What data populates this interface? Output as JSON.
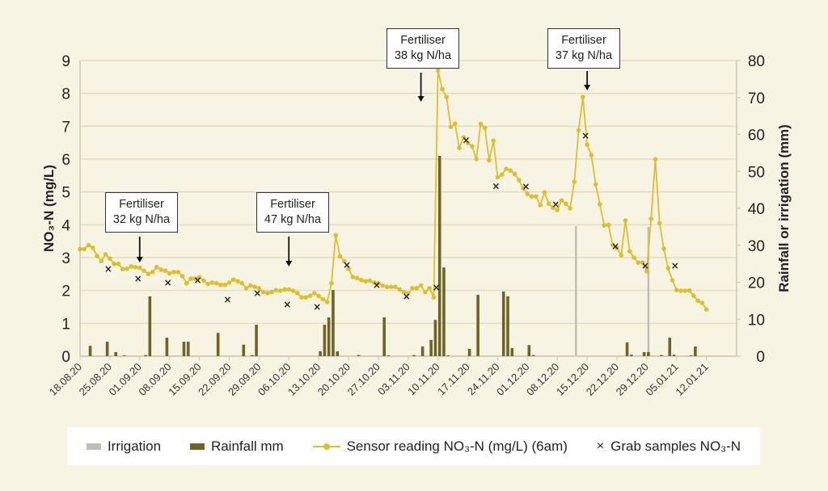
{
  "chart_data": {
    "type": "bar+line",
    "ylabel_left": "NO₃-N (mg/L)",
    "ylabel_right": "Rainfall or irrigation (mm)",
    "ylim_left": [
      0,
      9
    ],
    "ylim_right": [
      0,
      80
    ],
    "yticks_left": [
      0,
      1,
      2,
      3,
      4,
      5,
      6,
      7,
      8,
      9
    ],
    "yticks_right": [
      0,
      10,
      20,
      30,
      40,
      50,
      60,
      70,
      80
    ],
    "grid": true,
    "legend_placement": "bottom",
    "x_ticks": [
      "18.08.20",
      "25.08.20",
      "01.09.20",
      "08.09.20",
      "15.09.20",
      "22.09.20",
      "29.09.20",
      "06.10.20",
      "13.10.20",
      "20.10.20",
      "27.10.20",
      "03.11.20",
      "10.11.20",
      "17.11.20",
      "24.11.20",
      "01.12.20",
      "08.12.20",
      "15.12.20",
      "22.12.20",
      "29.12.20",
      "05.01.21",
      "12.01.21"
    ],
    "colors": {
      "irrigation": "#bfbdb3",
      "rainfall": "#6e6428",
      "sensor": "#dcbf2e",
      "grab": "#222222",
      "background": "#f8f4e3"
    },
    "legend": {
      "irrigation": "Irrigation",
      "rainfall": "Rainfall mm",
      "sensor": "Sensor reading NO₃-N (mg/L) (6am)",
      "grab": "Grab samples NO₃-N"
    },
    "sensor": {
      "dates": [
        "18.08.20",
        "19.08.20",
        "20.08.20",
        "21.08.20",
        "22.08.20",
        "23.08.20",
        "24.08.20",
        "25.08.20",
        "26.08.20",
        "27.08.20",
        "28.08.20",
        "29.08.20",
        "30.08.20",
        "31.08.20",
        "01.09.20",
        "02.09.20",
        "03.09.20",
        "04.09.20",
        "05.09.20",
        "06.09.20",
        "07.09.20",
        "08.09.20",
        "09.09.20",
        "10.09.20",
        "11.09.20",
        "12.09.20",
        "13.09.20",
        "14.09.20",
        "15.09.20",
        "16.09.20",
        "17.09.20",
        "18.09.20",
        "19.09.20",
        "20.09.20",
        "21.09.20",
        "22.09.20",
        "23.09.20",
        "24.09.20",
        "25.09.20",
        "26.09.20",
        "27.09.20",
        "28.09.20",
        "29.09.20",
        "30.09.20",
        "01.10.20",
        "02.10.20",
        "03.10.20",
        "04.10.20",
        "05.10.20",
        "06.10.20",
        "07.10.20",
        "08.10.20",
        "09.10.20",
        "10.10.20",
        "11.10.20",
        "12.10.20",
        "13.10.20",
        "14.10.20",
        "15.10.20",
        "16.10.20",
        "17.10.20",
        "18.10.20",
        "19.10.20",
        "20.10.20",
        "21.10.20",
        "22.10.20",
        "23.10.20",
        "24.10.20",
        "25.10.20",
        "26.10.20",
        "27.10.20",
        "28.10.20",
        "29.10.20",
        "30.10.20",
        "31.10.20",
        "01.11.20",
        "02.11.20",
        "03.11.20",
        "04.11.20",
        "05.11.20",
        "06.11.20",
        "07.11.20",
        "08.11.20",
        "09.11.20",
        "10.11.20",
        "11.11.20",
        "12.11.20",
        "13.11.20",
        "14.11.20",
        "15.11.20",
        "16.11.20",
        "17.11.20",
        "18.11.20",
        "19.11.20",
        "20.11.20",
        "21.11.20",
        "22.11.20",
        "23.11.20",
        "24.11.20",
        "25.11.20",
        "26.11.20",
        "27.11.20",
        "28.11.20",
        "29.11.20",
        "30.11.20",
        "01.12.20",
        "02.12.20",
        "03.12.20",
        "04.12.20",
        "05.12.20",
        "06.12.20",
        "07.12.20",
        "08.12.20",
        "09.12.20",
        "10.12.20",
        "11.12.20",
        "12.12.20",
        "13.12.20",
        "14.12.20",
        "15.12.20",
        "16.12.20",
        "17.12.20",
        "18.12.20",
        "19.12.20",
        "20.12.20",
        "21.12.20",
        "22.12.20",
        "23.12.20",
        "24.12.20",
        "25.12.20",
        "26.12.20",
        "27.12.20",
        "28.12.20",
        "29.12.20",
        "30.12.20",
        "31.12.20",
        "01.01.21",
        "02.01.21",
        "03.01.21",
        "04.01.21",
        "05.01.21",
        "06.01.21",
        "07.01.21",
        "08.01.21",
        "09.01.21",
        "10.01.21",
        "11.01.21",
        "12.01.21"
      ],
      "values": [
        3.26,
        3.26,
        3.38,
        3.3,
        3.05,
        2.89,
        3.1,
        2.97,
        2.81,
        2.81,
        2.65,
        2.66,
        2.73,
        2.71,
        2.69,
        2.6,
        2.5,
        2.56,
        2.71,
        2.63,
        2.6,
        2.52,
        2.56,
        2.56,
        2.44,
        2.22,
        2.36,
        2.36,
        2.4,
        2.3,
        2.2,
        2.24,
        2.22,
        2.17,
        2.17,
        2.24,
        2.33,
        2.28,
        2.22,
        2.07,
        2.15,
        2.11,
        2.07,
        1.95,
        1.92,
        1.95,
        2.01,
        1.99,
        2.03,
        2.03,
        1.99,
        1.92,
        1.79,
        1.79,
        1.84,
        1.92,
        1.83,
        1.73,
        1.65,
        2.22,
        3.68,
        3.04,
        2.89,
        2.66,
        2.41,
        2.38,
        2.32,
        2.28,
        2.3,
        2.24,
        2.22,
        2.15,
        2.11,
        2.11,
        2.11,
        2.03,
        1.95,
        1.91,
        2.07,
        2.07,
        2.15,
        1.95,
        2.07,
        1.79,
        8.7,
        8.13,
        7.89,
        6.98,
        7.08,
        6.34,
        6.66,
        6.49,
        6.39,
        6.0,
        7.07,
        6.95,
        5.97,
        6.56,
        5.45,
        5.53,
        5.7,
        5.65,
        5.55,
        5.36,
        5.11,
        4.94,
        4.86,
        4.86,
        4.6,
        4.99,
        4.64,
        4.52,
        4.45,
        4.74,
        4.64,
        4.5,
        5.31,
        6.88,
        7.89,
        6.44,
        6.12,
        5.23,
        4.62,
        3.98,
        4.0,
        3.39,
        3.29,
        3.07,
        4.13,
        3.19,
        3.0,
        2.85,
        2.85,
        2.58,
        4.18,
        6.0,
        4.05,
        3.27,
        2.68,
        2.31,
        2.01,
        1.99,
        1.99,
        2.0,
        1.84,
        1.69,
        1.62,
        1.42
      ]
    },
    "grab_samples": [
      {
        "date": "25.08.20",
        "value": 2.65
      },
      {
        "date": "01.09.20",
        "value": 2.36
      },
      {
        "date": "08.09.20",
        "value": 2.24
      },
      {
        "date": "15.09.20",
        "value": 2.31
      },
      {
        "date": "22.09.20",
        "value": 1.72
      },
      {
        "date": "29.09.20",
        "value": 1.92
      },
      {
        "date": "06.10.20",
        "value": 1.57
      },
      {
        "date": "13.10.20",
        "value": 1.5
      },
      {
        "date": "20.10.20",
        "value": 2.78
      },
      {
        "date": "27.10.20",
        "value": 2.16
      },
      {
        "date": "03.11.20",
        "value": 1.82
      },
      {
        "date": "10.11.20",
        "value": 2.09
      },
      {
        "date": "17.11.20",
        "value": 6.58
      },
      {
        "date": "24.11.20",
        "value": 5.18
      },
      {
        "date": "01.12.20",
        "value": 5.16
      },
      {
        "date": "08.12.20",
        "value": 4.62
      },
      {
        "date": "15.12.20",
        "value": 6.71
      },
      {
        "date": "22.12.20",
        "value": 3.34
      },
      {
        "date": "29.12.20",
        "value": 2.75
      },
      {
        "date": "05.01.21",
        "value": 2.75
      }
    ],
    "rainfall": [
      {
        "date": "20.08.20",
        "mm": 2.8
      },
      {
        "date": "24.08.20",
        "mm": 3.9
      },
      {
        "date": "26.08.20",
        "mm": 1.1
      },
      {
        "date": "28.08.20",
        "mm": 0.2
      },
      {
        "date": "02.09.20",
        "mm": 0.3
      },
      {
        "date": "03.09.20",
        "mm": 16.2
      },
      {
        "date": "07.09.20",
        "mm": 5.0
      },
      {
        "date": "11.09.20",
        "mm": 3.9
      },
      {
        "date": "12.09.20",
        "mm": 3.9
      },
      {
        "date": "19.09.20",
        "mm": 6.3
      },
      {
        "date": "25.09.20",
        "mm": 3.1
      },
      {
        "date": "27.09.20",
        "mm": 0.3
      },
      {
        "date": "28.09.20",
        "mm": 8.5
      },
      {
        "date": "13.10.20",
        "mm": 1.3
      },
      {
        "date": "14.10.20",
        "mm": 8.5
      },
      {
        "date": "15.10.20",
        "mm": 10.5
      },
      {
        "date": "16.10.20",
        "mm": 17.9
      },
      {
        "date": "17.10.20",
        "mm": 1.3
      },
      {
        "date": "22.10.20",
        "mm": 0.3
      },
      {
        "date": "28.10.20",
        "mm": 10.5
      },
      {
        "date": "29.10.20",
        "mm": 0.2
      },
      {
        "date": "04.11.20",
        "mm": 0.3
      },
      {
        "date": "06.11.20",
        "mm": 2.6
      },
      {
        "date": "08.11.20",
        "mm": 4.4
      },
      {
        "date": "09.11.20",
        "mm": 9.8
      },
      {
        "date": "10.11.20",
        "mm": 54.2
      },
      {
        "date": "11.11.20",
        "mm": 24.0
      },
      {
        "date": "12.11.20",
        "mm": 0.2
      },
      {
        "date": "17.11.20",
        "mm": 2.0
      },
      {
        "date": "19.11.20",
        "mm": 16.6
      },
      {
        "date": "25.11.20",
        "mm": 17.5
      },
      {
        "date": "26.11.20",
        "mm": 16.2
      },
      {
        "date": "27.11.20",
        "mm": 2.2
      },
      {
        "date": "01.12.20",
        "mm": 3.0
      },
      {
        "date": "02.12.20",
        "mm": 0.3
      },
      {
        "date": "24.12.20",
        "mm": 3.7
      },
      {
        "date": "25.12.20",
        "mm": 0.4
      },
      {
        "date": "28.12.20",
        "mm": 1.1
      },
      {
        "date": "29.12.20",
        "mm": 1.1
      },
      {
        "date": "01.01.21",
        "mm": 0.3
      },
      {
        "date": "03.01.21",
        "mm": 5.0
      },
      {
        "date": "04.01.21",
        "mm": 0.4
      },
      {
        "date": "08.01.21",
        "mm": 0.2
      },
      {
        "date": "09.01.21",
        "mm": 2.6
      }
    ],
    "irrigation": [
      {
        "date": "12.12.20",
        "mm": 35.2
      },
      {
        "date": "29.12.20",
        "mm": 35.0
      }
    ],
    "annotations": [
      {
        "date": "01.09.20",
        "line1": "Fertiliser",
        "line2": "32 kg N/ha"
      },
      {
        "date": "06.10.20",
        "line1": "Fertiliser",
        "line2": "47 kg N/ha"
      },
      {
        "date": "06.11.20",
        "line1": "Fertiliser",
        "line2": "38 kg N/ha"
      },
      {
        "date": "15.12.20",
        "line1": "Fertiliser",
        "line2": "37 kg N/ha"
      }
    ]
  }
}
